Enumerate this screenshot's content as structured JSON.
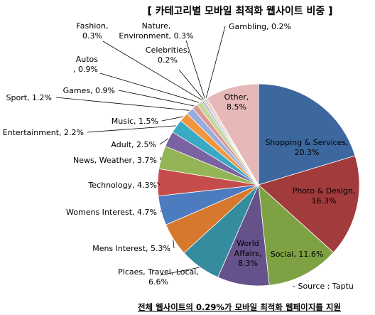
{
  "chart_data": {
    "type": "pie",
    "title": "[ 카테고리별 모바일 최적화 웹사이트 비중 ]",
    "source": "- Source : Taptu",
    "footer": "전체 웹사이트의 0.29%가 모바일 최적화 웹페이지를 지원",
    "slices": [
      {
        "label": [
          "Shopping & Services,",
          "20.3%"
        ],
        "value": 20.3,
        "color": "#3d679f"
      },
      {
        "label": [
          "Photo & Design,",
          "16.3%"
        ],
        "value": 16.3,
        "color": "#a23b3b"
      },
      {
        "label": [
          "Social, 11.6%"
        ],
        "value": 11.6,
        "color": "#7ea243"
      },
      {
        "label": [
          "World",
          "Affairs,",
          "8.3%"
        ],
        "value": 8.3,
        "color": "#66528a"
      },
      {
        "label": [
          "Plcaes, Travel, Local,",
          "6.6%"
        ],
        "value": 6.6,
        "color": "#348c9e"
      },
      {
        "label": [
          "Mens Interest, 5.3%"
        ],
        "value": 5.3,
        "color": "#d6782d"
      },
      {
        "label": [
          "Womens Interest, 4.7%"
        ],
        "value": 4.7,
        "color": "#4c7bbf"
      },
      {
        "label": [
          "Technology, 4.3%"
        ],
        "value": 4.3,
        "color": "#c44c4a"
      },
      {
        "label": [
          "News, Weather, 3.7%"
        ],
        "value": 3.7,
        "color": "#93b556"
      },
      {
        "label": [
          "Adult, 2.5%"
        ],
        "value": 2.5,
        "color": "#7b62a3"
      },
      {
        "label": [
          "Entertainment, 2.2%"
        ],
        "value": 2.2,
        "color": "#3aa9c4"
      },
      {
        "label": [
          "Music, 1.5%"
        ],
        "value": 1.5,
        "color": "#f2953f"
      },
      {
        "label": [
          "Sport, 1.2%"
        ],
        "value": 1.2,
        "color": "#95aede"
      },
      {
        "label": [
          "Games, 0.9%"
        ],
        "value": 0.9,
        "color": "#de9593"
      },
      {
        "label": [
          "Autos",
          ", 0.9%"
        ],
        "value": 0.9,
        "color": "#c4d89b"
      },
      {
        "label": [
          "Fashion,",
          "0.3%"
        ],
        "value": 0.3,
        "color": "#b3a3cf"
      },
      {
        "label": [
          "Celebrities,",
          "0.2%"
        ],
        "value": 0.2,
        "color": "#8ecfe0"
      },
      {
        "label": [
          "Nature,",
          "Environment, 0.3%"
        ],
        "value": 0.3,
        "color": "#f7b987"
      },
      {
        "label": [
          "Gambling, 0.2%"
        ],
        "value": 0.2,
        "color": "#b0c4e8"
      },
      {
        "label": [
          "Other,",
          "8.5%"
        ],
        "value": 8.5,
        "color": "#e6b8b7"
      }
    ]
  }
}
